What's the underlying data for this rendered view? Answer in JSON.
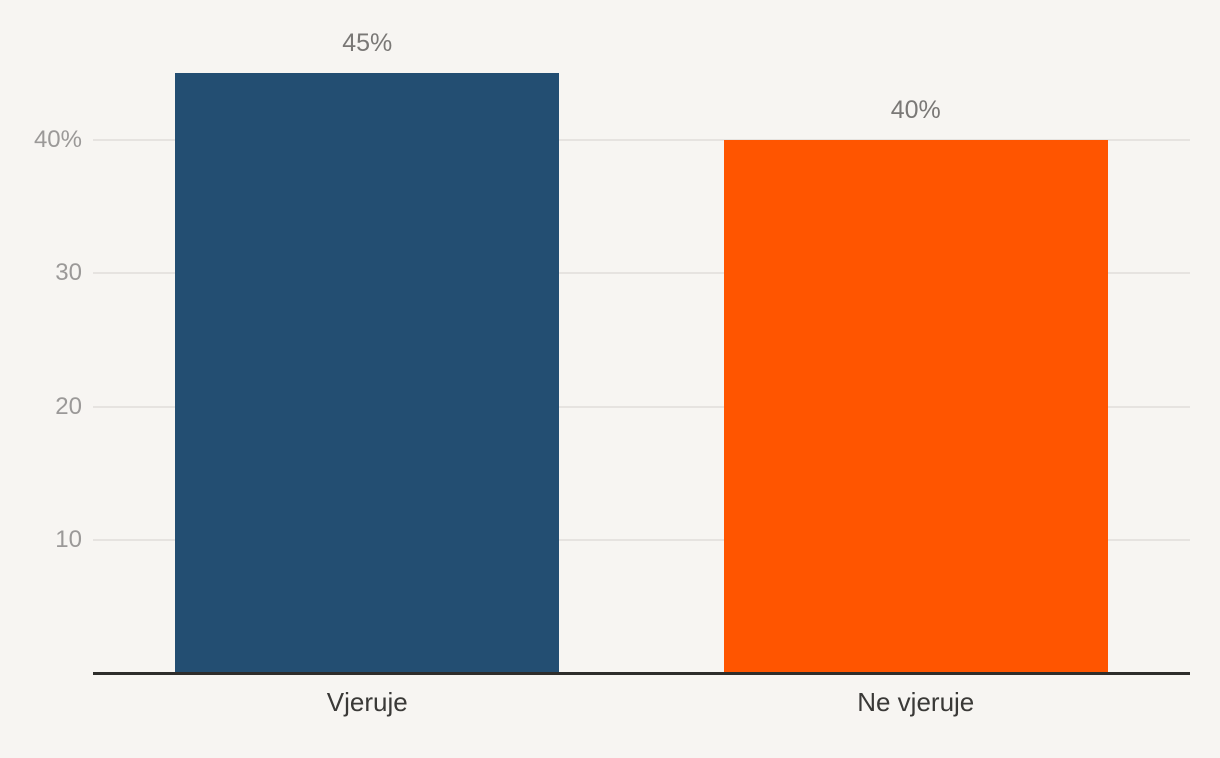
{
  "chart_data": {
    "type": "bar",
    "categories": [
      "Vjeruje",
      "Ne vjeruje"
    ],
    "values": [
      45,
      40
    ],
    "data_labels": [
      "45%",
      "40%"
    ],
    "bar_colors": [
      "#234e72",
      "#ff5500"
    ],
    "yticks": [
      {
        "value": 10,
        "label": "10"
      },
      {
        "value": 20,
        "label": "20"
      },
      {
        "value": 30,
        "label": "30"
      },
      {
        "value": 40,
        "label": "40%"
      }
    ],
    "ylim": [
      0,
      45
    ],
    "grid": true,
    "legend": false,
    "title": "",
    "xlabel": "",
    "ylabel": ""
  },
  "colors": {
    "background": "#f7f5f2",
    "gridline": "#e6e3e0",
    "axis_line": "#2e2d2b",
    "tick_text": "#9b9998",
    "data_label_text": "#7a7876",
    "category_text": "#3a3937",
    "bar_blue": "#234e72",
    "bar_orange": "#ff5500"
  }
}
